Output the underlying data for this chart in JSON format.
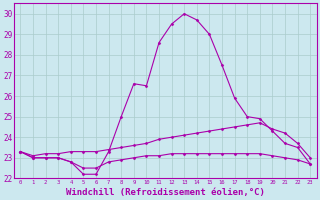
{
  "xlabel": "Windchill (Refroidissement éolien,°C)",
  "background_color": "#cce8ef",
  "grid_color": "#aacccc",
  "line_color": "#aa00aa",
  "x_hours": [
    0,
    1,
    2,
    3,
    4,
    5,
    6,
    7,
    8,
    9,
    10,
    11,
    12,
    13,
    14,
    15,
    16,
    17,
    18,
    19,
    20,
    21,
    22,
    23
  ],
  "temp_curve": [
    23.3,
    23.0,
    23.0,
    23.0,
    22.8,
    22.2,
    22.2,
    23.3,
    25.0,
    26.6,
    26.5,
    28.6,
    29.5,
    30.0,
    29.7,
    29.0,
    27.5,
    25.9,
    25.0,
    24.9,
    24.3,
    23.7,
    23.5,
    22.7
  ],
  "diag_line": [
    23.3,
    23.1,
    23.2,
    23.2,
    23.3,
    23.3,
    23.3,
    23.4,
    23.5,
    23.6,
    23.7,
    23.9,
    24.0,
    24.1,
    24.2,
    24.3,
    24.4,
    24.5,
    24.6,
    24.7,
    24.4,
    24.2,
    23.7,
    23.0
  ],
  "flat_line": [
    23.3,
    23.0,
    23.0,
    23.0,
    22.8,
    22.5,
    22.5,
    22.8,
    22.9,
    23.0,
    23.1,
    23.1,
    23.2,
    23.2,
    23.2,
    23.2,
    23.2,
    23.2,
    23.2,
    23.2,
    23.1,
    23.0,
    22.9,
    22.7
  ],
  "ylim": [
    22,
    30.5
  ],
  "yticks": [
    22,
    23,
    24,
    25,
    26,
    27,
    28,
    29,
    30
  ],
  "ytick_labels": [
    "22",
    "23",
    "24",
    "25",
    "26",
    "27",
    "28",
    "29",
    "30"
  ],
  "xtick_fontsize": 4.0,
  "ytick_fontsize": 5.5,
  "xlabel_fontsize": 6.5,
  "marker": "D",
  "markersize": 1.5,
  "linewidth": 0.8
}
